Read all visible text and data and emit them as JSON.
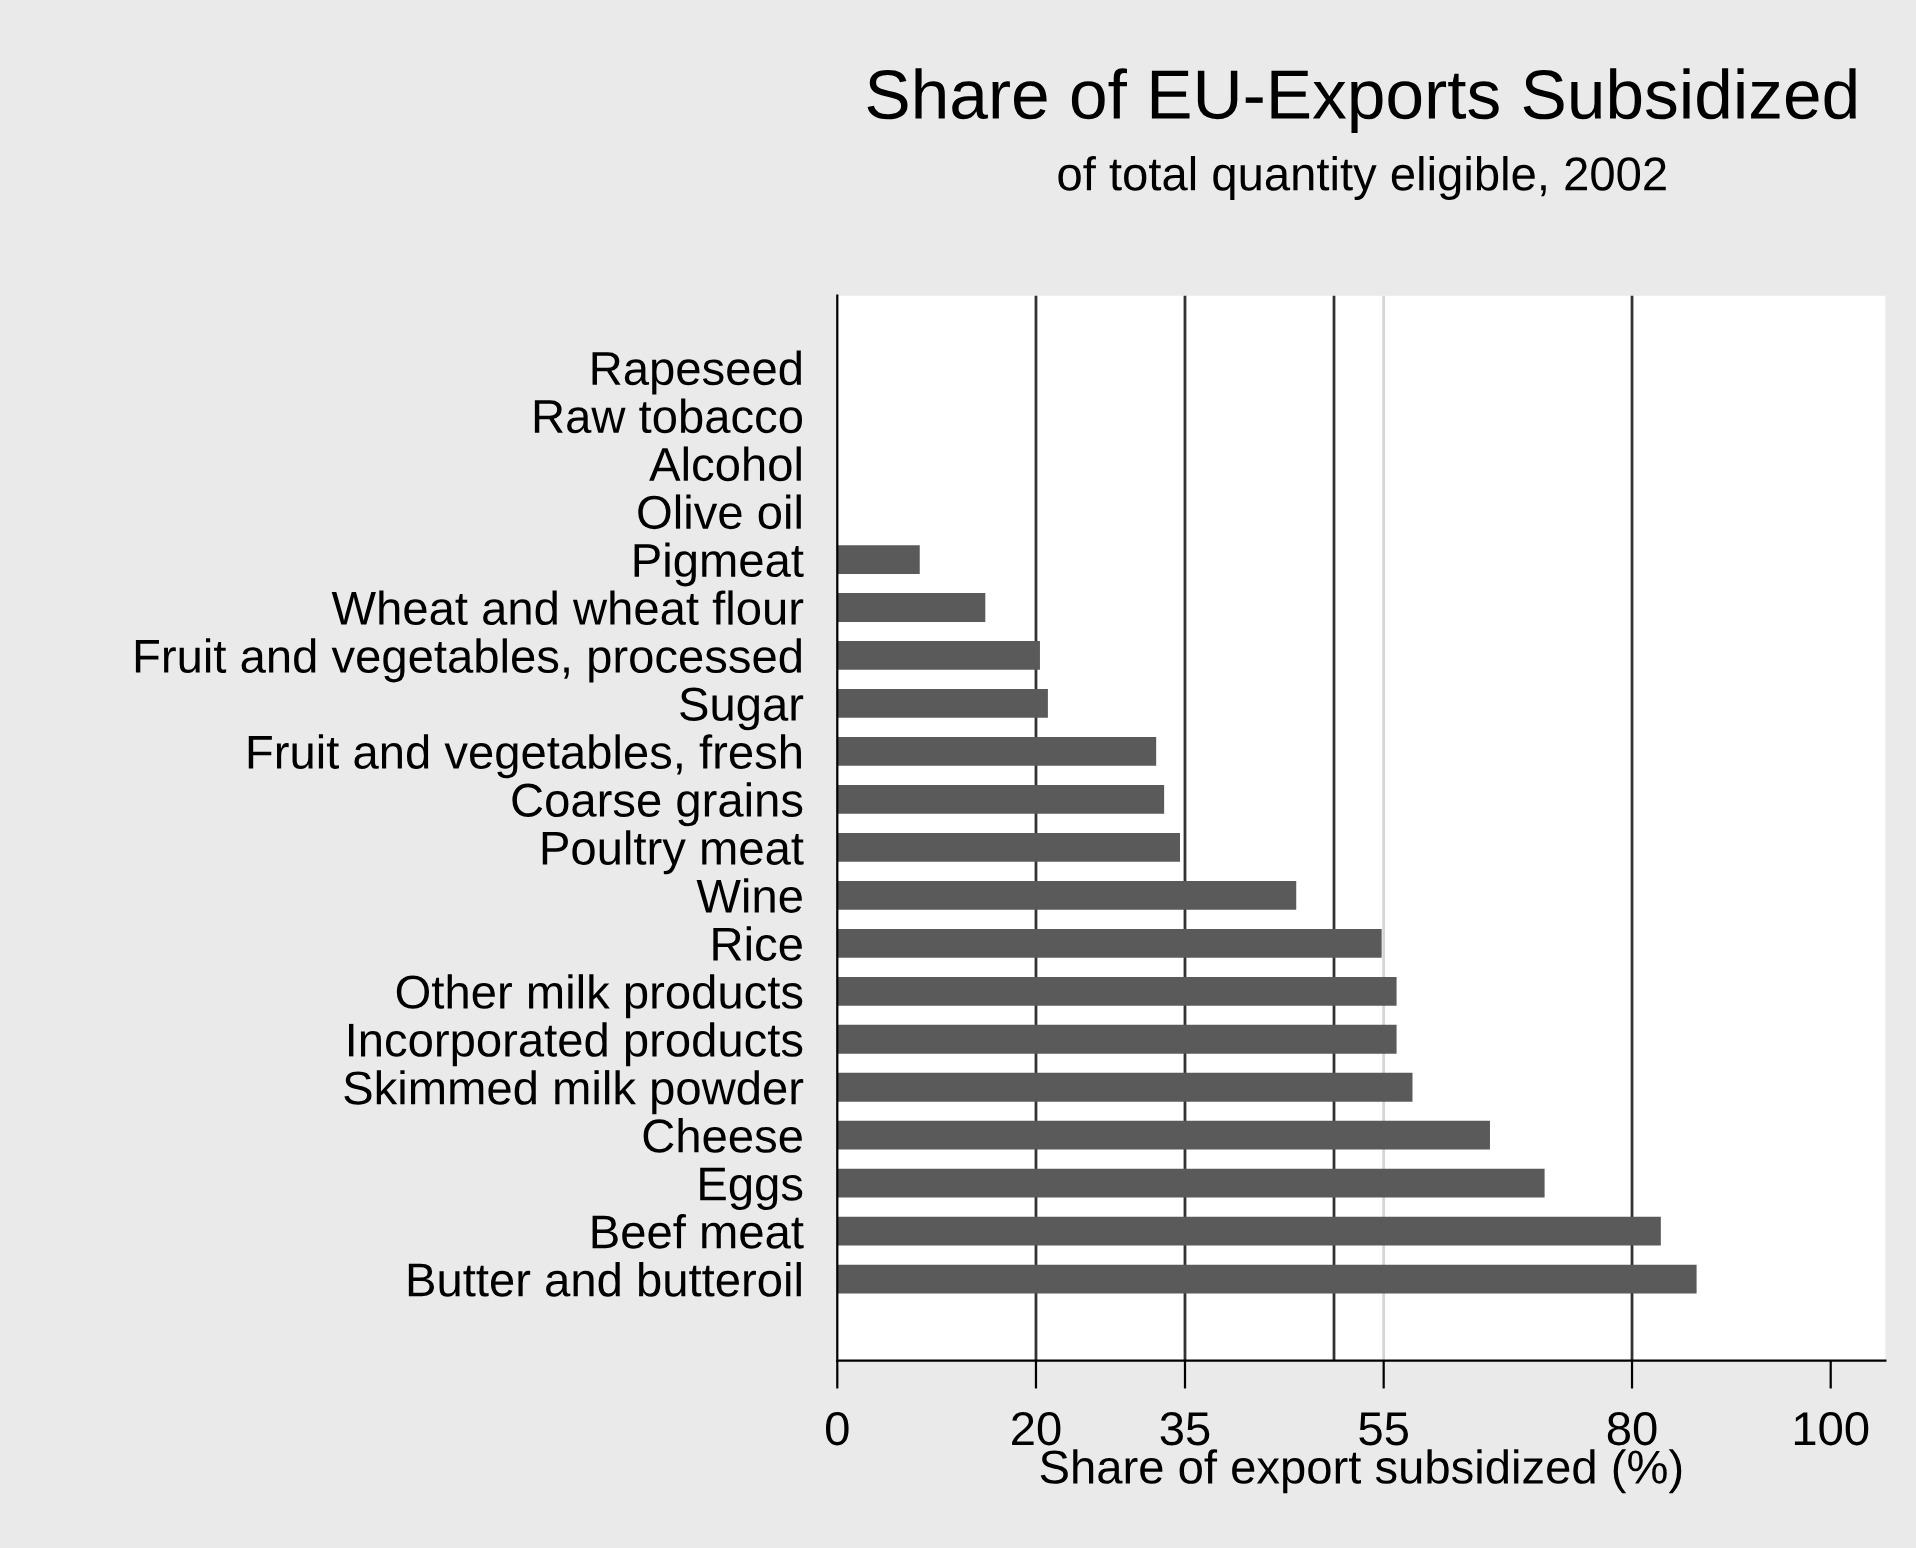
{
  "chart_data": {
    "type": "bar",
    "orientation": "horizontal",
    "title": "Share of EU-Exports Subsidized",
    "subtitle": "of total quantity eligible, 2002",
    "xlabel": "Share of export subsidized (%)",
    "categories": [
      "Rapeseed",
      "Raw tobacco",
      "Alcohol",
      "Olive oil",
      "Pigmeat",
      "Wheat and wheat flour",
      "Fruit and vegetables, processed",
      "Sugar",
      "Fruit and vegetables, fresh",
      "Coarse grains",
      "Poultry meat",
      "Wine",
      "Rice",
      "Other milk products",
      "Incorporated products",
      "Skimmed milk powder",
      "Cheese",
      "Eggs",
      "Beef meat",
      "Butter and butteroil"
    ],
    "values": [
      0,
      0,
      0,
      0,
      8.3,
      14.9,
      20.4,
      21.2,
      32.1,
      32.9,
      34.5,
      46.2,
      54.8,
      56.3,
      56.3,
      57.9,
      65.7,
      71.2,
      82.9,
      86.5
    ],
    "color": "#5a5a5a",
    "xlim": [
      0,
      105.5
    ],
    "xticks": [
      0,
      20,
      35,
      55,
      80,
      100
    ],
    "ref_lines": [
      {
        "axis": "x",
        "value": 20,
        "color": "#333333"
      },
      {
        "axis": "x",
        "value": 35,
        "color": "#333333"
      },
      {
        "axis": "x",
        "value": 50,
        "color": "#333333"
      },
      {
        "axis": "x",
        "value": 55,
        "color": "#d4d4d4"
      },
      {
        "axis": "x",
        "value": 80,
        "color": "#333333"
      }
    ],
    "grid": false,
    "legend": false
  }
}
